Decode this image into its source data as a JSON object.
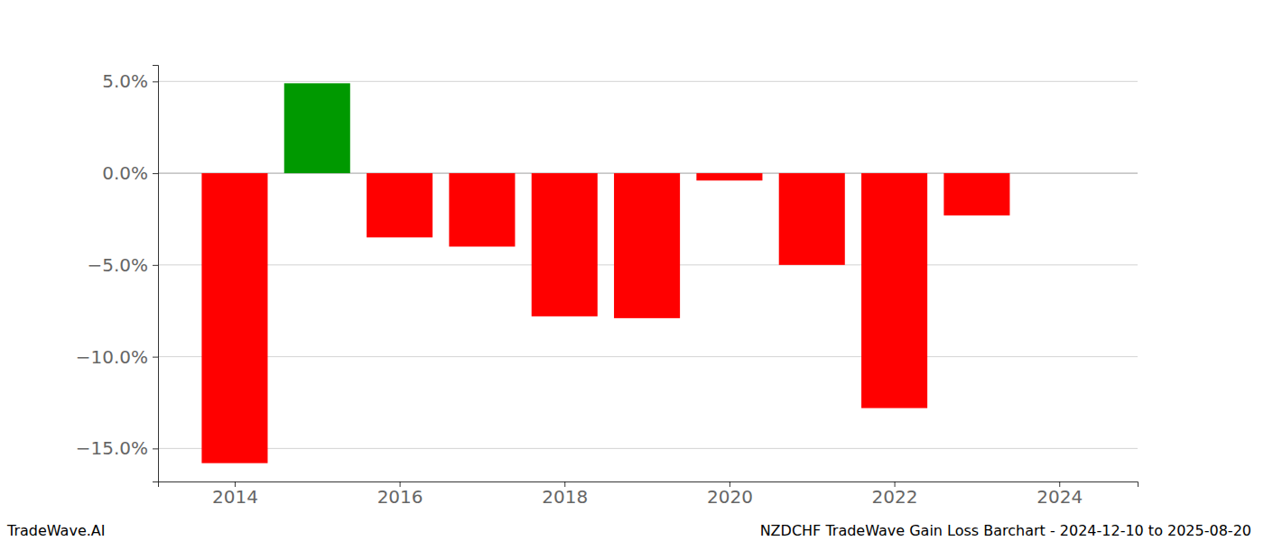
{
  "chart_data": {
    "type": "bar",
    "title": "NZDCHF TradeWave Gain Loss Barchart - 2024-12-10 to 2025-08-20",
    "annotations": [
      "TradeWave.AI"
    ],
    "x": [
      2014,
      2015,
      2016,
      2017,
      2018,
      2019,
      2020,
      2021,
      2022,
      2023
    ],
    "values": [
      -15.8,
      4.9,
      -3.5,
      -4.0,
      -7.8,
      -7.9,
      -0.4,
      -5.0,
      -12.8,
      -2.3
    ],
    "colors": [
      "#ff0000",
      "#009900",
      "#ff0000",
      "#ff0000",
      "#ff0000",
      "#ff0000",
      "#ff0000",
      "#ff0000",
      "#ff0000",
      "#ff0000"
    ],
    "xlim": [
      2013.07,
      2024.95
    ],
    "xticks": [
      2014,
      2016,
      2018,
      2020,
      2022,
      2024
    ],
    "ylim": [
      -16.8,
      5.9
    ],
    "yticks": [
      {
        "value": 5,
        "label": "5.0%"
      },
      {
        "value": 0,
        "label": "0.0%"
      },
      {
        "value": -5,
        "label": "−5.0%"
      },
      {
        "value": -10,
        "label": "−10.0%"
      },
      {
        "value": -15,
        "label": "−15.0%"
      }
    ],
    "grid": true
  }
}
